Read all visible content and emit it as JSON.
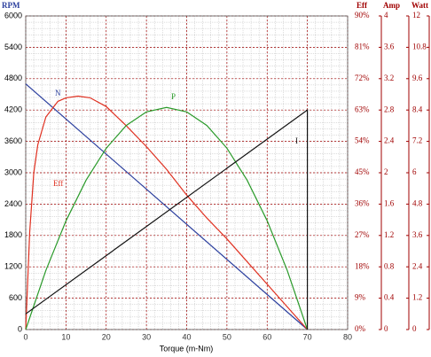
{
  "chart_data": {
    "type": "line",
    "x_label": "Torque (m-Nm)",
    "xlim": [
      0,
      80
    ],
    "xticks": [
      0,
      10,
      20,
      30,
      40,
      50,
      60,
      70,
      80
    ],
    "y_label": "RPM",
    "ylim": [
      0,
      6000
    ],
    "yticks": [
      0,
      600,
      1200,
      1800,
      2400,
      3000,
      3600,
      4200,
      4800,
      5400,
      6000
    ],
    "y2_label": "Eff",
    "y2lim": [
      0,
      90
    ],
    "y2ticks": [
      {
        "value": 0,
        "label": "0%"
      },
      {
        "value": 9,
        "label": "9%"
      },
      {
        "value": 18,
        "label": "18%"
      },
      {
        "value": 27,
        "label": "27%"
      },
      {
        "value": 36,
        "label": "36%"
      },
      {
        "value": 45,
        "label": "45%"
      },
      {
        "value": 54,
        "label": "54%"
      },
      {
        "value": 63,
        "label": "63%"
      },
      {
        "value": 72,
        "label": "72%"
      },
      {
        "value": 81,
        "label": "81%"
      },
      {
        "value": 90,
        "label": "90%"
      }
    ],
    "y3_label": "Amp",
    "y3lim": [
      0,
      4
    ],
    "y3ticks": [
      0,
      0.4,
      0.8,
      1.2,
      1.6,
      2,
      2.4,
      2.8,
      3.2,
      3.6,
      4
    ],
    "y4_label": "Watt",
    "y4lim": [
      0,
      12
    ],
    "y4ticks": [
      0,
      1.2,
      2.4,
      3.6,
      4.8,
      6,
      7.2,
      8.4,
      9.6,
      10.8,
      12
    ],
    "grid": true,
    "series": [
      {
        "name": "N",
        "color": "#2b3f9e",
        "axis": "y",
        "x": [
          0,
          70
        ],
        "values": [
          4700,
          0
        ]
      },
      {
        "name": "Eff",
        "color": "#e03020",
        "axis": "y2",
        "x": [
          0,
          1,
          2,
          3,
          5,
          8,
          10,
          13,
          16,
          20,
          25,
          30,
          35,
          40,
          45,
          50,
          55,
          60,
          65,
          70
        ],
        "values": [
          0,
          28,
          45,
          53,
          61,
          65.5,
          66.5,
          67,
          66.5,
          64,
          58.5,
          52.5,
          46,
          38.6,
          32,
          26,
          19.5,
          13,
          6.5,
          0
        ]
      },
      {
        "name": "P",
        "color": "#2a9a2a",
        "axis": "y4",
        "x": [
          0,
          5,
          10,
          15,
          20,
          25,
          30,
          35,
          40,
          45,
          50,
          55,
          60,
          65,
          70
        ],
        "values": [
          0,
          2.26,
          4.16,
          5.72,
          6.94,
          7.81,
          8.33,
          8.5,
          8.33,
          7.81,
          6.94,
          5.72,
          4.16,
          2.26,
          0
        ]
      },
      {
        "name": "I",
        "color": "#111111",
        "axis": "y3",
        "x": [
          0,
          70,
          70
        ],
        "values": [
          0.2,
          2.8,
          0
        ]
      }
    ]
  }
}
